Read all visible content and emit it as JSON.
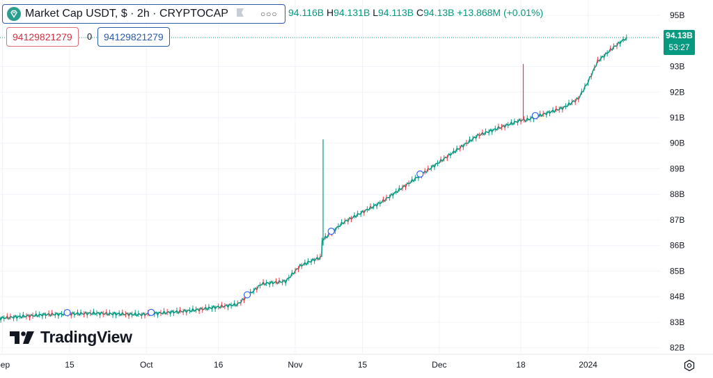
{
  "legend": {
    "title": "Market Cap USDT, $ · 2h · CRYPTOCAP",
    "flag_icon": "flag-icon",
    "more_icon": "more-dots-icon",
    "symbol_icon": "tether-diamond-icon"
  },
  "ohlc": {
    "o_value": "94.116B",
    "h_label": "H",
    "h_value": "94.131B",
    "l_label": "L",
    "l_value": "94.113B",
    "c_label": "C",
    "c_value": "94.13B",
    "change": "+13.868M (+0.01%)"
  },
  "inputs": {
    "red_value": "94129821279",
    "mid_value": "0",
    "blue_value": "94129821279"
  },
  "price_tag": {
    "price": "94.13B",
    "countdown": "53:27"
  },
  "brand": {
    "name": "TradingView"
  },
  "settings_icon": "settings-gear-icon",
  "colors": {
    "up": "#089981",
    "down": "#f23645",
    "accent": "#2962ff",
    "grid": "#f0f3fa"
  },
  "chart_data": {
    "type": "candlestick-line",
    "y_ticks": [
      "95B",
      "93B",
      "92B",
      "91B",
      "90B",
      "89B",
      "88B",
      "87B",
      "86B",
      "85B",
      "84B",
      "83B",
      "82B"
    ],
    "y_tick_values": [
      95,
      93,
      92,
      91,
      90,
      89,
      88,
      87,
      86,
      85,
      84,
      83,
      82
    ],
    "ylim": [
      81.8,
      95.6
    ],
    "x_ticks": [
      "Sep",
      "15",
      "Oct",
      "16",
      "Nov",
      "15",
      "Dec",
      "18",
      "2024"
    ],
    "x_tick_days": [
      1,
      15,
      31,
      46,
      62,
      76,
      92,
      109,
      123
    ],
    "xlim": [
      0.5,
      138
    ],
    "x_unit": "days since 2023-08-31",
    "series": [
      {
        "x": [
          0,
          10,
          20,
          30,
          40,
          50,
          55,
          60,
          63,
          66,
          67.5,
          67.6,
          72,
          80,
          90,
          100,
          109,
          110,
          118,
          121,
          123,
          125,
          128,
          131
        ],
        "close": [
          83.15,
          83.3,
          83.35,
          83.3,
          83.45,
          83.7,
          84.5,
          84.6,
          85.2,
          85.45,
          85.55,
          86.2,
          86.9,
          87.7,
          89.0,
          90.3,
          90.9,
          90.9,
          91.4,
          91.75,
          92.4,
          93.2,
          93.7,
          94.13
        ]
      }
    ],
    "spikes": [
      {
        "x": 67.8,
        "low": 86.0,
        "high": 90.15,
        "color": "up"
      },
      {
        "x": 109.5,
        "low": 90.9,
        "high": 93.1,
        "color": "down"
      }
    ],
    "markers_x": [
      14.5,
      32,
      52,
      69.5,
      88,
      112
    ],
    "last_price": 94.13
  }
}
